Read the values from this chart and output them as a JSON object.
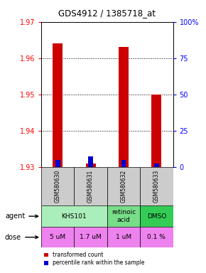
{
  "title": "GDS4912 / 1385718_at",
  "samples": [
    "GSM580630",
    "GSM580631",
    "GSM580632",
    "GSM580633"
  ],
  "red_values": [
    1.964,
    1.931,
    1.963,
    1.95
  ],
  "blue_values": [
    1.932,
    1.933,
    1.932,
    1.931
  ],
  "y_min": 1.93,
  "y_max": 1.97,
  "y_ticks_left": [
    1.93,
    1.94,
    1.95,
    1.96,
    1.97
  ],
  "y_ticks_right": [
    0,
    25,
    50,
    75,
    100
  ],
  "doses": [
    "5 uM",
    "1.7 uM",
    "1 uM",
    "0.1 %"
  ],
  "dose_color": "#EE82EE",
  "bar_width": 0.3,
  "blue_bar_width": 0.15,
  "red_color": "#CC0000",
  "blue_color": "#0000CC",
  "sample_bg": "#CCCCCC",
  "agent_groups": [
    {
      "label": "KHS101",
      "start": 0,
      "end": 1,
      "color": "#AAEEBB"
    },
    {
      "label": "retinoic\nacid",
      "start": 2,
      "end": 2,
      "color": "#77DD88"
    },
    {
      "label": "DMSO",
      "start": 3,
      "end": 3,
      "color": "#33CC55"
    }
  ],
  "legend_red": "transformed count",
  "legend_blue": "percentile rank within the sample"
}
